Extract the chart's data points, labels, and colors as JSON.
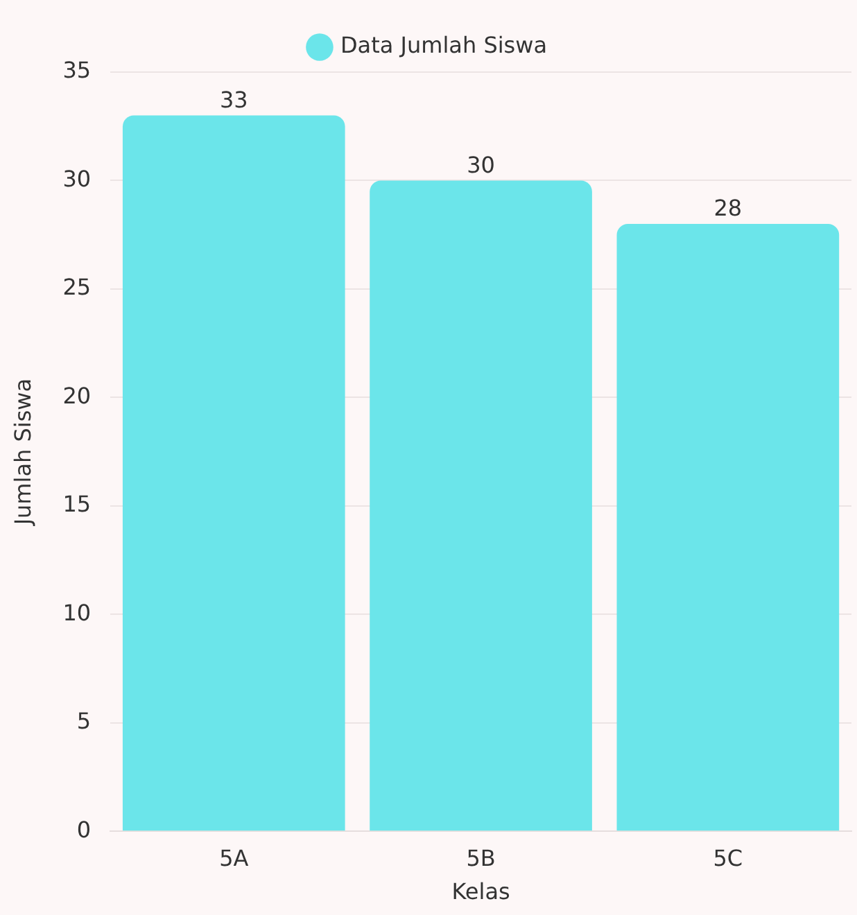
{
  "chart_data": {
    "type": "bar",
    "xlabel": "Kelas",
    "ylabel": "Jumlah Siswa",
    "categories": [
      "5A",
      "5B",
      "5C"
    ],
    "series": [
      {
        "name": "Data Jumlah Siswa",
        "color": "#6be5ea",
        "values": [
          33,
          30,
          28
        ]
      }
    ],
    "ylim": [
      0,
      35
    ],
    "yticks": [
      0,
      5,
      10,
      15,
      20,
      25,
      30,
      35
    ],
    "grid": "y",
    "legend": "top",
    "data_labels": true
  }
}
